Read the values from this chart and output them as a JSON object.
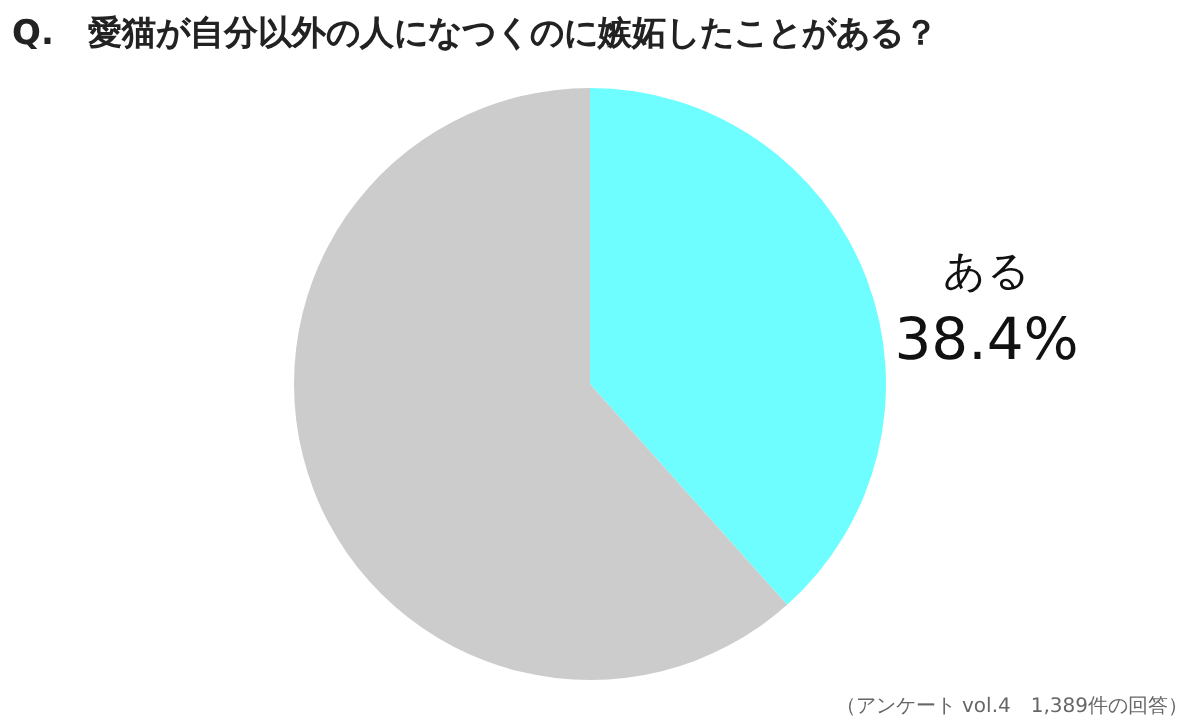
{
  "chart_data": {
    "type": "pie",
    "title": "Q.　愛猫が自分以外の人になつくのに嫉妬したことがある？",
    "categories": [
      "ある",
      null
    ],
    "values": [
      38.4,
      61.6
    ],
    "colors": [
      "#6efeff",
      "#cccccc"
    ],
    "value_labels": [
      "38.4%",
      null
    ],
    "annotations": [
      "（アンケート vol.4　1,389件の回答）"
    ]
  }
}
